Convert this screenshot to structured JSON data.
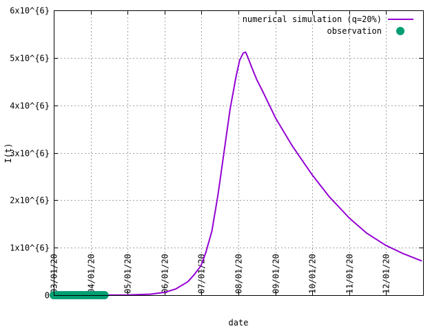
{
  "chart_data": {
    "type": "line",
    "title": "",
    "xlabel": "date",
    "ylabel": "I(t)",
    "grid": true,
    "legend_position": "top-right",
    "xlim": [
      "2020-03-01",
      "2020-12-31"
    ],
    "ylim": [
      0,
      6000000
    ],
    "x_ticks": [
      "2020-03-01",
      "2020-04-01",
      "2020-05-01",
      "2020-06-01",
      "2020-07-01",
      "2020-08-01",
      "2020-09-01",
      "2020-10-01",
      "2020-11-01",
      "2020-12-01"
    ],
    "x_tick_labels": [
      "03/01/20",
      "04/01/20",
      "05/01/20",
      "06/01/20",
      "07/01/20",
      "08/01/20",
      "09/01/20",
      "10/01/20",
      "11/01/20",
      "12/01/20"
    ],
    "y_ticks": [
      0,
      1000000,
      2000000,
      3000000,
      4000000,
      5000000,
      6000000
    ],
    "y_tick_labels": [
      "0",
      "1x10^{6}",
      "2x10^{6}",
      "3x10^{6}",
      "4x10^{6}",
      "5x10^{6}",
      "6x10^{6}"
    ],
    "series": [
      {
        "name": "numerical simulation (q=20%)",
        "kind": "line",
        "color": "#9400d3",
        "x": [
          "2020-03-01",
          "2020-04-01",
          "2020-05-01",
          "2020-05-20",
          "2020-06-01",
          "2020-06-10",
          "2020-06-20",
          "2020-06-25",
          "2020-07-01",
          "2020-07-05",
          "2020-07-10",
          "2020-07-15",
          "2020-07-20",
          "2020-07-25",
          "2020-07-30",
          "2020-08-02",
          "2020-08-05",
          "2020-08-07",
          "2020-08-09",
          "2020-08-12",
          "2020-08-16",
          "2020-08-21",
          "2020-09-01",
          "2020-09-15",
          "2020-10-01",
          "2020-10-15",
          "2020-11-01",
          "2020-11-15",
          "2020-12-01",
          "2020-12-15",
          "2020-12-31"
        ],
        "y": [
          0,
          0,
          5000,
          20000,
          60000,
          130000,
          280000,
          420000,
          620000,
          900000,
          1350000,
          2100000,
          3000000,
          3900000,
          4600000,
          4950000,
          5100000,
          5120000,
          5000000,
          4800000,
          4550000,
          4300000,
          3720000,
          3130000,
          2540000,
          2080000,
          1620000,
          1310000,
          1050000,
          880000,
          720000
        ]
      },
      {
        "name": "observation",
        "kind": "points",
        "color": "#009e73",
        "x": [
          "2020-03-01",
          "2020-03-03",
          "2020-03-05",
          "2020-03-07",
          "2020-03-09",
          "2020-03-11",
          "2020-03-13",
          "2020-03-15",
          "2020-03-17",
          "2020-03-19",
          "2020-03-21",
          "2020-03-23",
          "2020-03-25",
          "2020-03-27",
          "2020-03-29",
          "2020-03-31",
          "2020-04-02",
          "2020-04-04",
          "2020-04-06",
          "2020-04-08",
          "2020-04-10",
          "2020-04-12"
        ],
        "y": [
          0,
          0,
          0,
          0,
          0,
          0,
          0,
          0,
          0,
          0,
          0,
          0,
          0,
          0,
          0,
          0,
          0,
          0,
          0,
          0,
          0,
          0
        ]
      }
    ]
  }
}
